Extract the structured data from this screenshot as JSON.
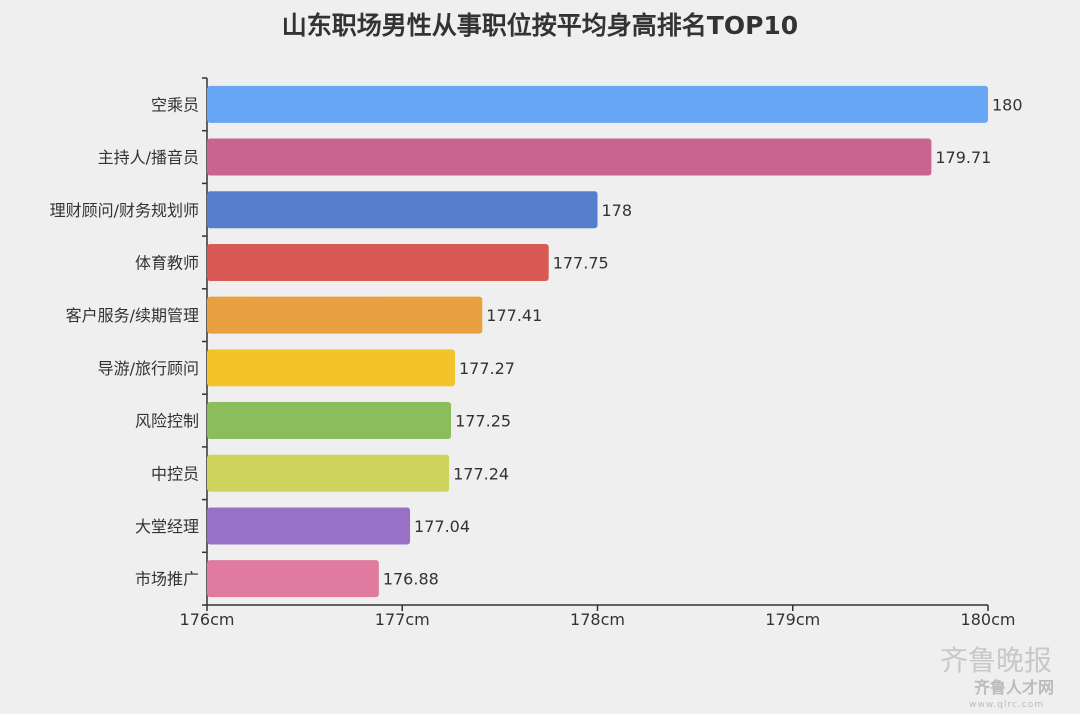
{
  "chart_data": {
    "type": "bar",
    "orientation": "horizontal",
    "title": "山东职场男性从事职位按平均身高排名TOP10",
    "categories": [
      "空乘员",
      "主持人/播音员",
      "理财顾问/财务规划师",
      "体育教师",
      "客户服务/续期管理",
      "导游/旅行顾问",
      "风险控制",
      "中控员",
      "大堂经理",
      "市场推广"
    ],
    "values": [
      180,
      179.71,
      178,
      177.75,
      177.41,
      177.27,
      177.25,
      177.24,
      177.04,
      176.88
    ],
    "data_labels": [
      "180",
      "179.71",
      "178",
      "177.75",
      "177.41",
      "177.27",
      "177.25",
      "177.24",
      "177.04",
      "176.88"
    ],
    "colors": [
      "#66a6f5",
      "#c8648f",
      "#557fcc",
      "#d95a55",
      "#e8a040",
      "#f3c42a",
      "#8cbd5c",
      "#cfd45e",
      "#9970c7",
      "#e07a9f"
    ],
    "xlim": [
      176,
      180
    ],
    "xticks": [
      176,
      177,
      178,
      179,
      180
    ],
    "xtick_labels": [
      "176cm",
      "177cm",
      "178cm",
      "179cm",
      "180cm"
    ],
    "xlabel": "",
    "ylabel": "",
    "grid": false,
    "legend": "none"
  },
  "watermark": {
    "line1": "齐鲁晚报",
    "line2": "齐鲁人才网",
    "line3": "www.qlrc.com"
  }
}
